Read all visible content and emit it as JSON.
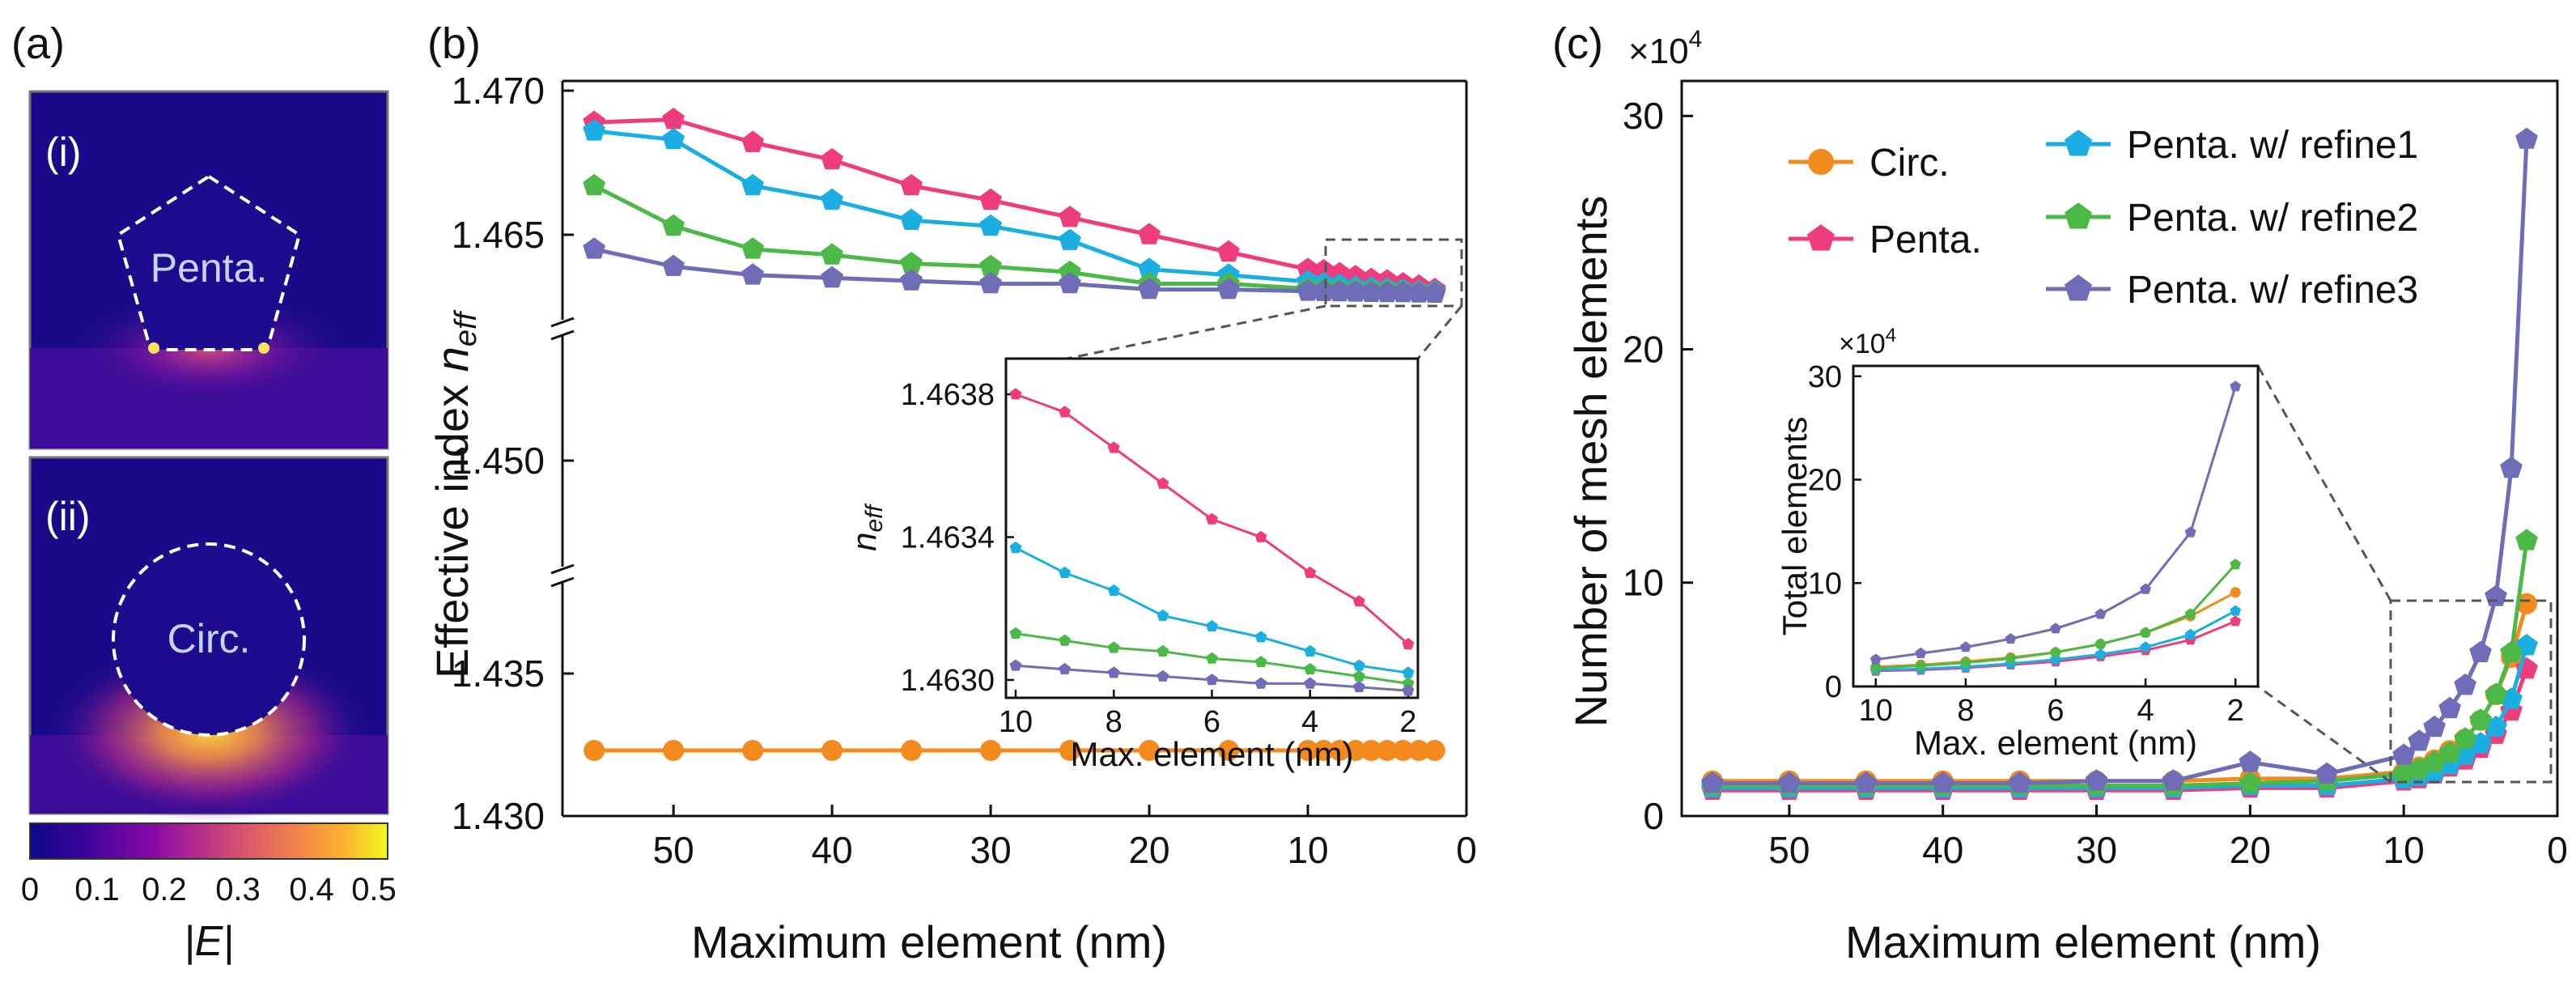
{
  "colors": {
    "circ": "#F28A1E",
    "penta": "#EE3C7D",
    "refine1": "#1AAEE3",
    "refine2": "#4CB848",
    "refine3": "#6F6CB8",
    "axis": "#111111"
  },
  "panel_a": {
    "label": "(a)",
    "sub_i": "(i)",
    "sub_ii": "(ii)",
    "penta_label": "Penta.",
    "circ_label": "Circ.",
    "colorbar_ticks": [
      "0",
      "0.1",
      "0.2",
      "0.3",
      "0.4",
      "0.5"
    ],
    "colorbar_title": "|E|"
  },
  "chart_data": [
    {
      "id": "b",
      "panel_label": "(b)",
      "type": "line",
      "xlabel": "Maximum element (nm)",
      "ylabel": "Effective index n_eff",
      "ylabel_main": "Effective index ",
      "ylabel_sym": "n",
      "ylabel_sub": "eff",
      "x_ticks": [
        "50",
        "40",
        "30",
        "20",
        "10",
        "0"
      ],
      "x_tick_values": [
        50,
        40,
        30,
        20,
        10,
        0
      ],
      "xlim": [
        57,
        0
      ],
      "y_ticks_upper": [
        "1.470",
        "1.465"
      ],
      "y_ticks_mid": [
        "1.450"
      ],
      "y_ticks_lower": [
        "1.435",
        "1.430"
      ],
      "y_segments": [
        [
          1.43,
          1.4375
        ],
        [
          1.4475,
          1.452
        ],
        [
          1.4623,
          1.47
        ]
      ],
      "x": [
        55,
        50,
        45,
        40,
        35,
        30,
        25,
        20,
        15,
        10,
        9,
        8,
        7,
        6,
        5,
        4,
        3,
        2
      ],
      "series": [
        {
          "name": "Circ.",
          "key": "circ",
          "marker": "circle",
          "values": [
            1.4323,
            1.4323,
            1.4323,
            1.4323,
            1.4323,
            1.4323,
            1.4323,
            1.4323,
            1.4323,
            1.4323,
            1.4323,
            1.4323,
            1.4323,
            1.4323,
            1.4323,
            1.4323,
            1.4323,
            1.4323
          ]
        },
        {
          "name": "Penta.",
          "key": "penta",
          "marker": "pentagon",
          "values": [
            1.4689,
            1.469,
            1.4682,
            1.4676,
            1.4667,
            1.4662,
            1.4656,
            1.465,
            1.4644,
            1.4638,
            1.46375,
            1.46365,
            1.46355,
            1.46345,
            1.4634,
            1.4633,
            1.46322,
            1.4631
          ]
        },
        {
          "name": "Penta. w/ refine1",
          "key": "refine1",
          "marker": "pentagon",
          "values": [
            1.4686,
            1.4683,
            1.4667,
            1.4662,
            1.4655,
            1.4653,
            1.4648,
            1.4638,
            1.4636,
            1.46337,
            1.4633,
            1.46325,
            1.46318,
            1.46315,
            1.46312,
            1.46308,
            1.46304,
            1.46302
          ]
        },
        {
          "name": "Penta. w/ refine2",
          "key": "refine2",
          "marker": "pentagon",
          "values": [
            1.4667,
            1.4653,
            1.4645,
            1.4643,
            1.464,
            1.4639,
            1.4637,
            1.4633,
            1.4633,
            1.46313,
            1.46311,
            1.46309,
            1.46308,
            1.46306,
            1.46305,
            1.46303,
            1.46301,
            1.46299
          ]
        },
        {
          "name": "Penta. w/ refine3",
          "key": "refine3",
          "marker": "pentagon",
          "values": [
            1.4645,
            1.4639,
            1.4636,
            1.4635,
            1.4634,
            1.4633,
            1.4633,
            1.4631,
            1.4631,
            1.46304,
            1.46303,
            1.46302,
            1.46301,
            1.463,
            1.46299,
            1.46299,
            1.46298,
            1.46297
          ]
        }
      ],
      "inset": {
        "xlabel": "Max. element (nm)",
        "ylabel_sym": "n",
        "ylabel_sub": "eff",
        "x_ticks": [
          "10",
          "8",
          "6",
          "4",
          "2"
        ],
        "x_tick_values": [
          10,
          8,
          6,
          4,
          2
        ],
        "xlim": [
          10,
          2
        ],
        "y_ticks": [
          "1.4638",
          "1.4634",
          "1.4630"
        ],
        "y_tick_values": [
          1.4638,
          1.4634,
          1.463
        ],
        "ylim": [
          1.46295,
          1.4639
        ]
      }
    },
    {
      "id": "c",
      "panel_label": "(c)",
      "type": "line",
      "xlabel": "Maximum element (nm)",
      "ylabel": "Number of mesh elements",
      "multiplier": "×10",
      "multiplier_exp": "4",
      "x_ticks": [
        "50",
        "40",
        "30",
        "20",
        "10",
        "0"
      ],
      "x_tick_values": [
        50,
        40,
        30,
        20,
        10,
        0
      ],
      "xlim": [
        57,
        0
      ],
      "y_ticks": [
        "0",
        "10",
        "20",
        "30"
      ],
      "y_tick_values": [
        0,
        10,
        20,
        30
      ],
      "ylim": [
        0,
        31.5
      ],
      "x": [
        55,
        50,
        45,
        40,
        35,
        30,
        25,
        20,
        15,
        10,
        9,
        8,
        7,
        6,
        5,
        4,
        3,
        2
      ],
      "series": [
        {
          "name": "Circ.",
          "key": "circ",
          "marker": "circle",
          "values": [
            1.5,
            1.5,
            1.5,
            1.5,
            1.5,
            1.5,
            1.5,
            1.6,
            1.6,
            1.9,
            2.1,
            2.4,
            2.8,
            3.3,
            4.1,
            5.2,
            6.8,
            9.1
          ]
        },
        {
          "name": "Penta.",
          "key": "penta",
          "marker": "pentagon",
          "values": [
            1.1,
            1.1,
            1.1,
            1.1,
            1.1,
            1.1,
            1.1,
            1.2,
            1.2,
            1.5,
            1.6,
            1.8,
            2.1,
            2.4,
            2.9,
            3.5,
            4.5,
            6.3
          ]
        },
        {
          "name": "Penta. w/ refine1",
          "key": "refine1",
          "marker": "pentagon",
          "values": [
            1.2,
            1.2,
            1.2,
            1.2,
            1.2,
            1.2,
            1.2,
            1.3,
            1.3,
            1.6,
            1.7,
            1.9,
            2.2,
            2.6,
            3.1,
            3.8,
            5.0,
            7.3
          ]
        },
        {
          "name": "Penta. w/ refine2",
          "key": "refine2",
          "marker": "pentagon",
          "values": [
            1.3,
            1.3,
            1.3,
            1.3,
            1.3,
            1.3,
            1.3,
            1.4,
            1.5,
            1.8,
            2.0,
            2.3,
            2.7,
            3.3,
            4.1,
            5.2,
            7.0,
            11.8
          ]
        },
        {
          "name": "Penta. w/ refine3",
          "key": "refine3",
          "marker": "pentagon",
          "values": [
            1.4,
            1.4,
            1.4,
            1.4,
            1.4,
            1.5,
            1.5,
            2.3,
            1.8,
            2.6,
            3.2,
            3.8,
            4.6,
            5.6,
            7.0,
            9.4,
            14.9,
            29.0
          ]
        }
      ],
      "legend_col1": [
        "Circ.",
        "Penta."
      ],
      "legend_col2": [
        "Penta. w/ refine1",
        "Penta. w/ refine2",
        "Penta. w/ refine3"
      ],
      "inset": {
        "xlabel": "Max. element (nm)",
        "ylabel": "Total elements",
        "multiplier": "×10",
        "multiplier_exp": "4",
        "x_ticks": [
          "10",
          "8",
          "6",
          "4",
          "2"
        ],
        "x_tick_values": [
          10,
          8,
          6,
          4,
          2
        ],
        "xlim": [
          10.5,
          1.5
        ],
        "y_ticks": [
          "0",
          "10",
          "20",
          "30"
        ],
        "y_tick_values": [
          0,
          10,
          20,
          30
        ],
        "ylim": [
          0,
          31
        ]
      }
    }
  ]
}
